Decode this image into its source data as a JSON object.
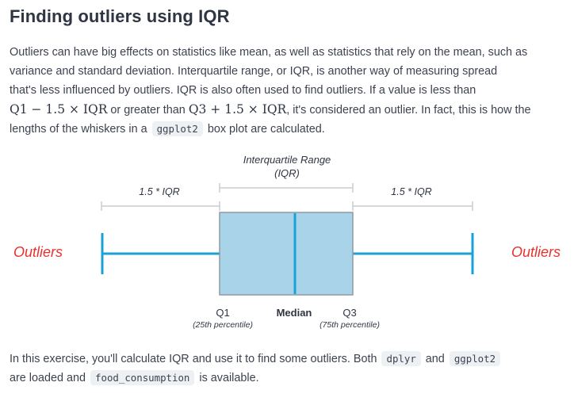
{
  "heading": "Finding outliers using IQR",
  "intro": {
    "l1": "Outliers can have big effects on statistics like mean, as well as statistics that rely on the mean, such as",
    "l2": "variance and standard deviation. Interquartile range, or IQR, is another way of measuring spread",
    "l3": "that's less influenced by outliers. IQR is also often used to find outliers. If a value is less than",
    "formula_lower": "Q1 − 1.5 × IQR",
    "l4_mid": "or greater than",
    "formula_upper": "Q3 + 1.5 × IQR",
    "l4_end": ", it's considered an outlier. In fact, this is how the",
    "l5_start": "lengths of the whiskers in a",
    "code_ggplot2": "ggplot2",
    "l5_end": "box plot are calculated."
  },
  "diagram": {
    "iqr_label_line1": "Interquartile Range",
    "iqr_label_line2": "(IQR)",
    "left_whisker_label": "1.5 * IQR",
    "right_whisker_label": "1.5 * IQR",
    "outliers_left": "Outliers",
    "outliers_right": "Outliers",
    "q1_label": "Q1",
    "q1_sub": "(25th percentile)",
    "median_label": "Median",
    "q3_label": "Q3",
    "q3_sub": "(75th percentile)",
    "colors": {
      "box_fill": "#a8d3e8",
      "box_stroke": "#8f9aa3",
      "whisker": "#1aa1d6",
      "median": "#1aa1d6",
      "outliers_text": "#e8322e",
      "bracket": "#c9cdd1"
    }
  },
  "outro": {
    "l1_start": "In this exercise, you'll calculate IQR and use it to find some outliers. Both",
    "code_dplyr": "dplyr",
    "l1_mid": "and",
    "code_ggplot2": "ggplot2",
    "l2_start": "are loaded and",
    "code_food": "food_consumption",
    "l2_end": "is available."
  }
}
